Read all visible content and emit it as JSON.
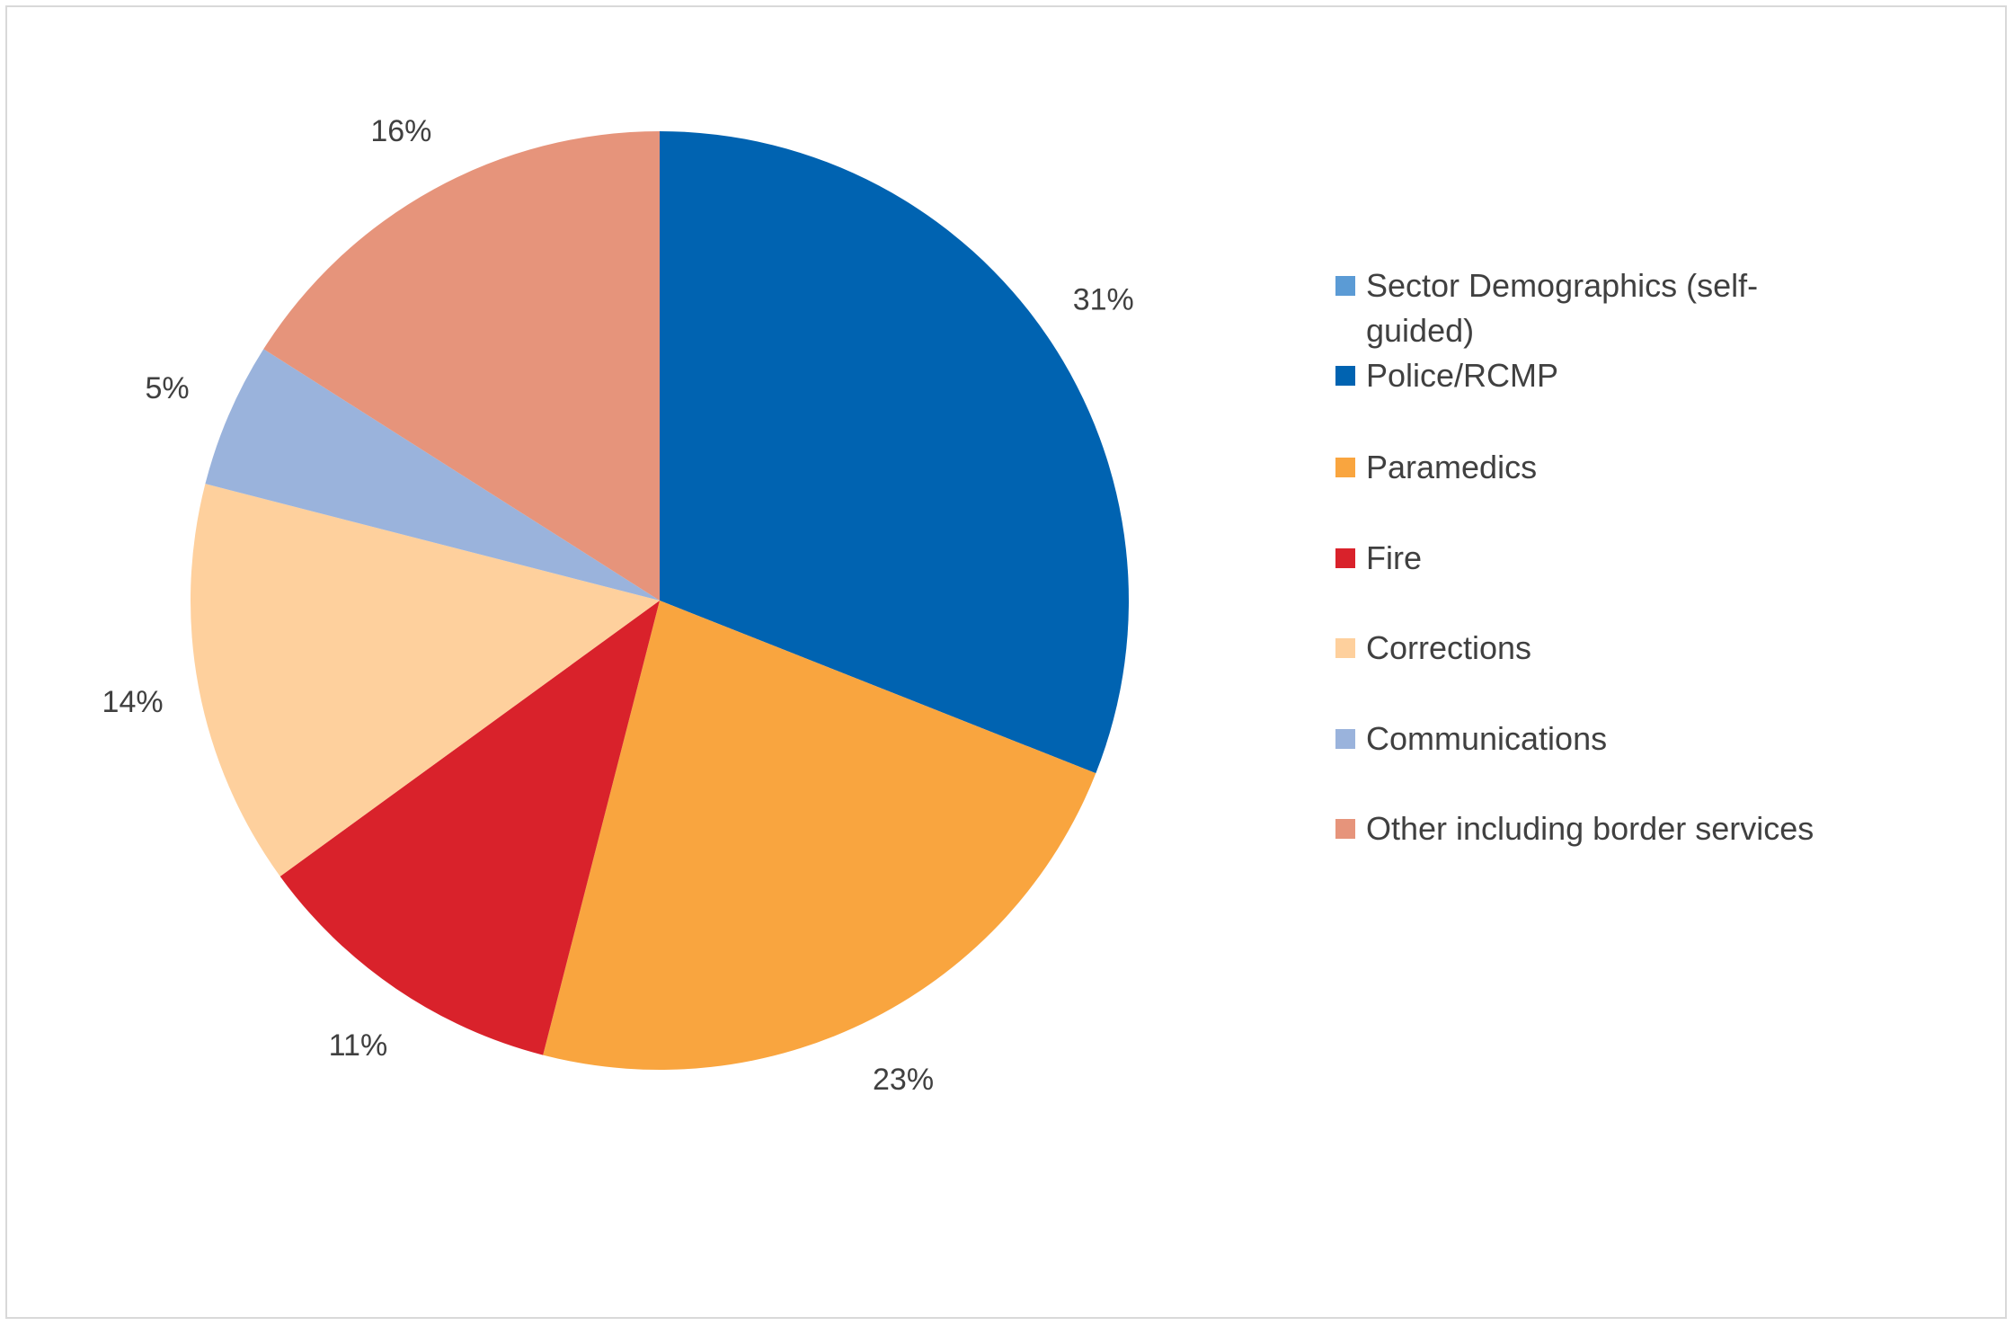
{
  "chart_data": {
    "type": "pie",
    "title": "",
    "legend_position": "right",
    "slices": [
      {
        "label": "Sector Demographics (self-guided)",
        "value": 0,
        "display": "",
        "color": "#5b9bd5"
      },
      {
        "label": "Police/RCMP",
        "value": 31,
        "display": "31%",
        "color": "#0063b1"
      },
      {
        "label": "Paramedics",
        "value": 23,
        "display": "23%",
        "color": "#f9a53f"
      },
      {
        "label": "Fire",
        "value": 11,
        "display": "11%",
        "color": "#d9222b"
      },
      {
        "label": "Corrections",
        "value": 14,
        "display": "14%",
        "color": "#fed09d"
      },
      {
        "label": "Communications",
        "value": 5,
        "display": "5%",
        "color": "#9ab3dc"
      },
      {
        "label": "Other including border services",
        "value": 16,
        "display": "16%",
        "color": "#e6947b"
      }
    ]
  }
}
